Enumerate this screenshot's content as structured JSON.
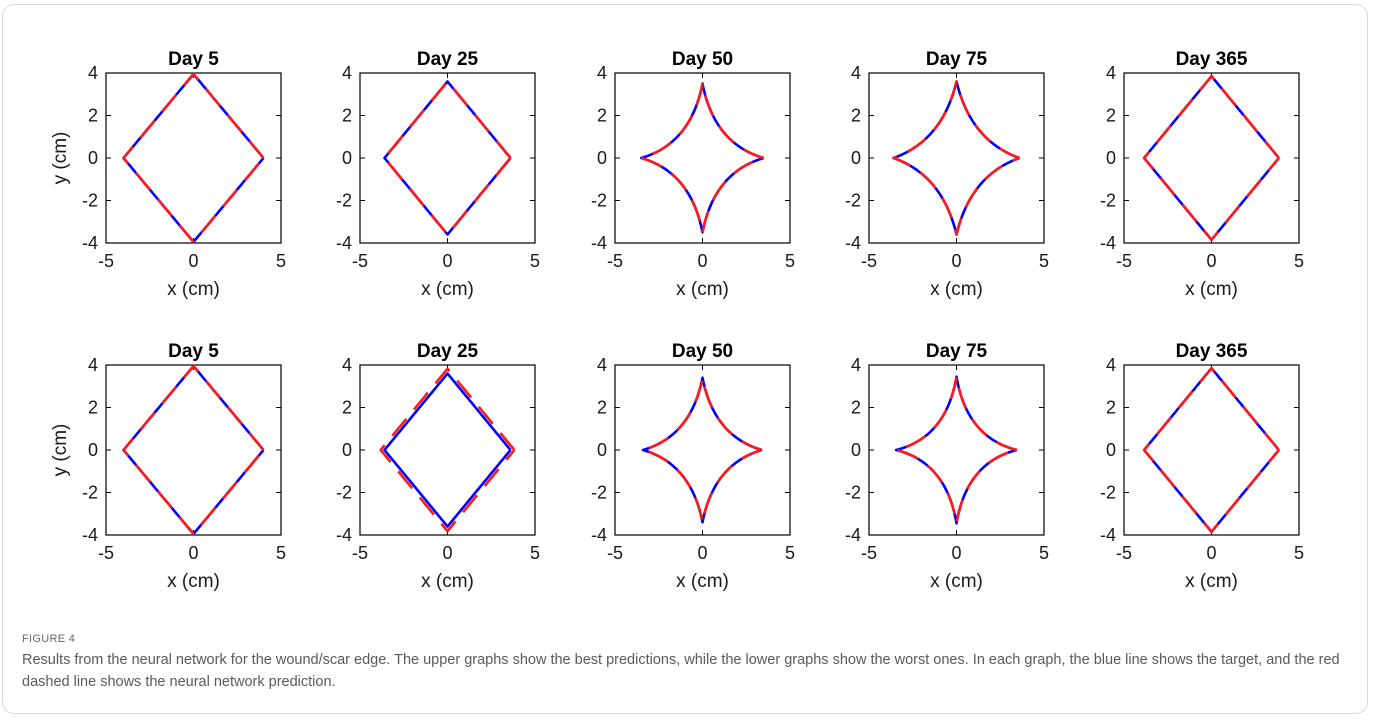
{
  "figure": {
    "label": "FIGURE 4",
    "caption": "Results from the neural network for the wound/scar edge. The upper graphs show the best predictions, while the lower graphs show the worst ones. In each graph, the blue line shows the target, and the red dashed line shows the neural network prediction."
  },
  "colors": {
    "target": "#0000ff",
    "prediction": "#ff1a1a",
    "axes": "#000000"
  },
  "chart_data": [
    {
      "type": "line",
      "row": "upper",
      "title": "Day 5",
      "xlabel": "x (cm)",
      "ylabel": "y (cm)",
      "xlim": [
        -5,
        5
      ],
      "ylim": [
        -4,
        4
      ],
      "xticks": [
        -5,
        0,
        5
      ],
      "yticks": [
        -4,
        -2,
        0,
        2,
        4
      ],
      "half_width": 4.0,
      "half_height": 3.95,
      "concavity": 0.0,
      "prediction_offset": 0.0
    },
    {
      "type": "line",
      "row": "upper",
      "title": "Day 25",
      "xlabel": "x (cm)",
      "ylabel": "",
      "xlim": [
        -5,
        5
      ],
      "ylim": [
        -4,
        4
      ],
      "xticks": [
        -5,
        0,
        5
      ],
      "yticks": [
        -4,
        -2,
        0,
        2,
        4
      ],
      "half_width": 3.6,
      "half_height": 3.6,
      "concavity": 0.0,
      "prediction_offset": 0.0
    },
    {
      "type": "line",
      "row": "upper",
      "title": "Day 50",
      "xlabel": "x (cm)",
      "ylabel": "",
      "xlim": [
        -5,
        5
      ],
      "ylim": [
        -4,
        4
      ],
      "xticks": [
        -5,
        0,
        5
      ],
      "yticks": [
        -4,
        -2,
        0,
        2,
        4
      ],
      "half_width": 3.5,
      "half_height": 3.5,
      "concavity": 0.28,
      "prediction_offset": 0.0
    },
    {
      "type": "line",
      "row": "upper",
      "title": "Day 75",
      "xlabel": "x (cm)",
      "ylabel": "",
      "xlim": [
        -5,
        5
      ],
      "ylim": [
        -4,
        4
      ],
      "xticks": [
        -5,
        0,
        5
      ],
      "yticks": [
        -4,
        -2,
        0,
        2,
        4
      ],
      "half_width": 3.6,
      "half_height": 3.6,
      "concavity": 0.25,
      "prediction_offset": 0.0
    },
    {
      "type": "line",
      "row": "upper",
      "title": "Day 365",
      "xlabel": "x (cm)",
      "ylabel": "",
      "xlim": [
        -5,
        5
      ],
      "ylim": [
        -4,
        4
      ],
      "xticks": [
        -5,
        0,
        5
      ],
      "yticks": [
        -4,
        -2,
        0,
        2,
        4
      ],
      "half_width": 3.85,
      "half_height": 3.85,
      "concavity": 0.0,
      "prediction_offset": 0.0
    },
    {
      "type": "line",
      "row": "lower",
      "title": "Day 5",
      "xlabel": "x (cm)",
      "ylabel": "y (cm)",
      "xlim": [
        -5,
        5
      ],
      "ylim": [
        -4,
        4
      ],
      "xticks": [
        -5,
        0,
        5
      ],
      "yticks": [
        -4,
        -2,
        0,
        2,
        4
      ],
      "half_width": 4.0,
      "half_height": 3.95,
      "concavity": 0.0,
      "prediction_offset": 0.0
    },
    {
      "type": "line",
      "row": "lower",
      "title": "Day 25",
      "xlabel": "x (cm)",
      "ylabel": "",
      "xlim": [
        -5,
        5
      ],
      "ylim": [
        -4,
        4
      ],
      "xticks": [
        -5,
        0,
        5
      ],
      "yticks": [
        -4,
        -2,
        0,
        2,
        4
      ],
      "half_width": 3.6,
      "half_height": 3.6,
      "concavity": 0.0,
      "prediction_offset": 0.22
    },
    {
      "type": "line",
      "row": "lower",
      "title": "Day 50",
      "xlabel": "x (cm)",
      "ylabel": "",
      "xlim": [
        -5,
        5
      ],
      "ylim": [
        -4,
        4
      ],
      "xticks": [
        -5,
        0,
        5
      ],
      "yticks": [
        -4,
        -2,
        0,
        2,
        4
      ],
      "half_width": 3.4,
      "half_height": 3.4,
      "concavity": 0.28,
      "prediction_offset": 0.0
    },
    {
      "type": "line",
      "row": "lower",
      "title": "Day 75",
      "xlabel": "x (cm)",
      "ylabel": "",
      "xlim": [
        -5,
        5
      ],
      "ylim": [
        -4,
        4
      ],
      "xticks": [
        -5,
        0,
        5
      ],
      "yticks": [
        -4,
        -2,
        0,
        2,
        4
      ],
      "half_width": 3.45,
      "half_height": 3.45,
      "concavity": 0.3,
      "prediction_offset": 0.0
    },
    {
      "type": "line",
      "row": "lower",
      "title": "Day 365",
      "xlabel": "x (cm)",
      "ylabel": "",
      "xlim": [
        -5,
        5
      ],
      "ylim": [
        -4,
        4
      ],
      "xticks": [
        -5,
        0,
        5
      ],
      "yticks": [
        -4,
        -2,
        0,
        2,
        4
      ],
      "half_width": 3.85,
      "half_height": 3.85,
      "concavity": 0.0,
      "prediction_offset": 0.0
    }
  ]
}
